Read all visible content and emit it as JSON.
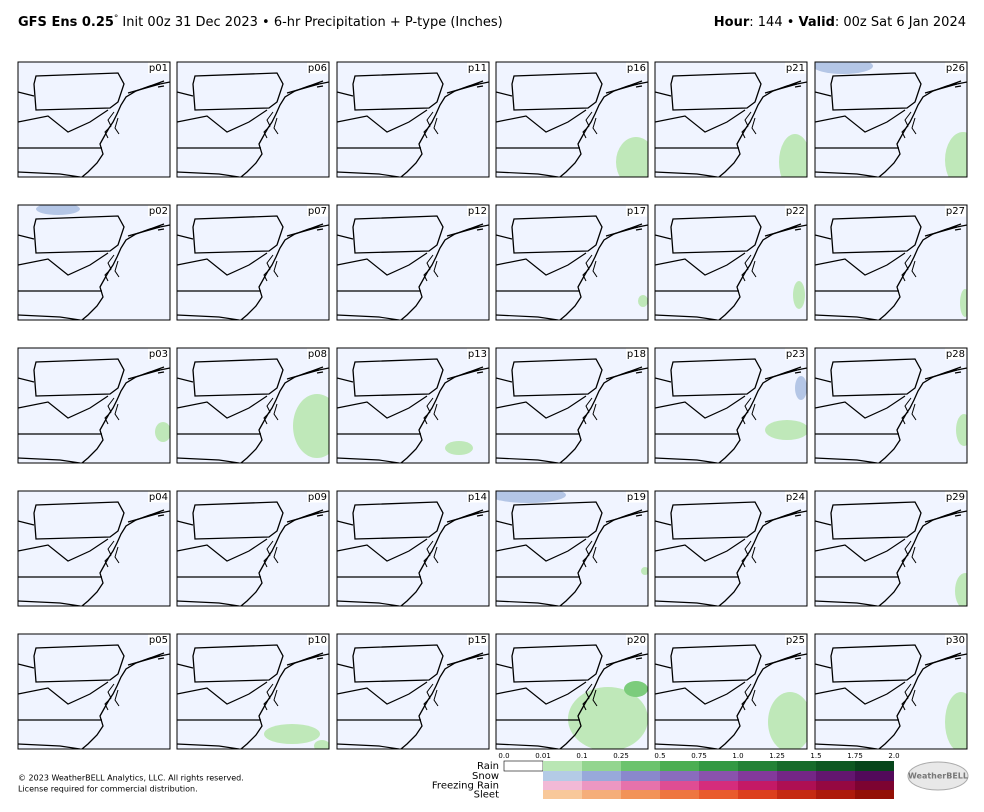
{
  "header": {
    "model": "GFS Ens 0.25",
    "degree": "°",
    "description": "Init 00z 31 Dec 2023 • 6-hr Precipitation + P-type (Inches)",
    "hour_label": "Hour",
    "hour_text": ": 144 • ",
    "valid_label": "Valid",
    "valid_text": ": 00z Sat 6 Jan 2024"
  },
  "panels": [
    "p01",
    "p02",
    "p03",
    "p04",
    "p05",
    "p06",
    "p07",
    "p08",
    "p09",
    "p10",
    "p11",
    "p12",
    "p13",
    "p14",
    "p15",
    "p16",
    "p17",
    "p18",
    "p19",
    "p20",
    "p21",
    "p22",
    "p23",
    "p24",
    "p25",
    "p26",
    "p27",
    "p28",
    "p29",
    "p30"
  ],
  "legend": {
    "ticks": [
      "0.0",
      "0.01",
      "0.1",
      "0.25",
      "0.5",
      "0.75",
      "1.0",
      "1.25",
      "1.5",
      "1.75",
      "2.0"
    ],
    "rows": [
      {
        "name": "Rain",
        "colors": [
          "#ffffff",
          "#b9e6b4",
          "#93d58f",
          "#6cc36d",
          "#4bae52",
          "#339943",
          "#238236",
          "#176b2b",
          "#0e5822",
          "#07451b"
        ]
      },
      {
        "name": "Snow",
        "colors": [
          null,
          "#b4cbe6",
          "#98a9da",
          "#8a88cc",
          "#8a6cbd",
          "#8a52ad",
          "#83399b",
          "#742686",
          "#63166f",
          "#520a5a"
        ]
      },
      {
        "name": "Freezing Rain",
        "colors": [
          null,
          "#f2b9d6",
          "#ec97c2",
          "#e672ab",
          "#df4d93",
          "#d52c7c",
          "#c41966",
          "#ae0f53",
          "#950841",
          "#7c0331"
        ]
      },
      {
        "name": "Sleet",
        "colors": [
          null,
          "#f8c89a",
          "#f5ae7a",
          "#f29358",
          "#ee7640",
          "#e95b2c",
          "#dc401d",
          "#c52b12",
          "#ad1b0b",
          "#931005"
        ]
      }
    ]
  },
  "footer": {
    "copyright": "© 2023 WeatherBELL Analytics, LLC. All rights reserved.",
    "license": "License required for commercial distribution.",
    "logo": "WeatherBELL"
  }
}
